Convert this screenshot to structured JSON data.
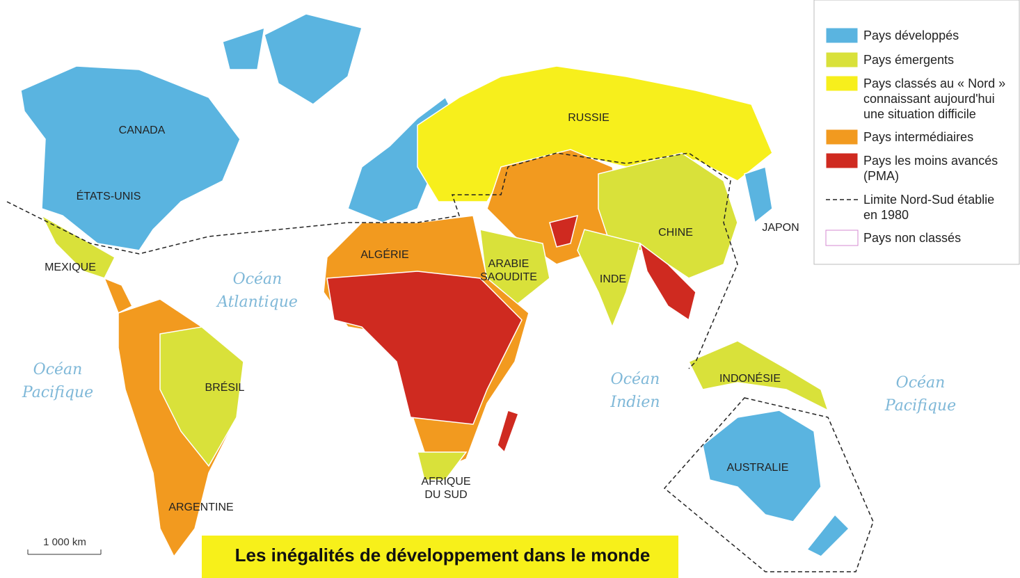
{
  "title": "Les inégalités de développement dans le monde",
  "scale": "1 000 km",
  "legend": [
    {
      "lines": [
        "Pays développés"
      ],
      "color": "#5ab4e0"
    },
    {
      "lines": [
        "Pays émergents"
      ],
      "color": "#d9e13a"
    },
    {
      "lines": [
        "Pays classés au « Nord »",
        "connaissant aujourd'hui",
        "une situation difficile"
      ],
      "color": "#f7ef1c"
    },
    {
      "lines": [
        "Pays intermédiaires"
      ],
      "color": "#f29a1f"
    },
    {
      "lines": [
        "Pays les moins avancés",
        "(PMA)"
      ],
      "color": "#cf2a20"
    },
    {
      "lines": [
        "Limite Nord-Sud établie",
        "en 1980"
      ]
    },
    {
      "lines": [
        "Pays non classés"
      ],
      "color": "#ffffff"
    }
  ],
  "countries": [
    {
      "lines": [
        "CANADA"
      ]
    },
    {
      "lines": [
        "ÉTATS-UNIS"
      ]
    },
    {
      "lines": [
        "MEXIQUE"
      ]
    },
    {
      "lines": [
        "BRÉSIL"
      ]
    },
    {
      "lines": [
        "ARGENTINE"
      ]
    },
    {
      "lines": [
        "ALGÉRIE"
      ]
    },
    {
      "lines": [
        "ARABIE",
        "SAOUDITE"
      ]
    },
    {
      "lines": [
        "AFRIQUE",
        "DU SUD"
      ]
    },
    {
      "lines": [
        "RUSSIE"
      ]
    },
    {
      "lines": [
        "CHINE"
      ]
    },
    {
      "lines": [
        "INDE"
      ]
    },
    {
      "lines": [
        "JAPON"
      ]
    },
    {
      "lines": [
        "INDONÉSIE"
      ]
    },
    {
      "lines": [
        "AUSTRALIE"
      ]
    }
  ],
  "oceans": [
    {
      "lines": [
        "Océan",
        "Atlantique"
      ]
    },
    {
      "lines": [
        "Océan",
        "Pacifique"
      ]
    },
    {
      "lines": [
        "Océan",
        "Indien"
      ]
    },
    {
      "lines": [
        "Océan",
        "Pacifique"
      ]
    }
  ]
}
